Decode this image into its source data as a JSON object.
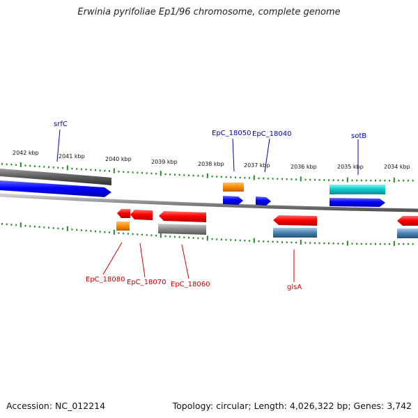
{
  "title": "Erwinia pyrifoliae Ep1/96 chromosome, complete genome",
  "footer": {
    "accession": "Accession: NC_012214",
    "summary": "Topology: circular; Length: 4,026,322 bp; Genes: 3,742"
  },
  "scale_labels": [
    "2042 kbp",
    "2041 kbp",
    "2040 kbp",
    "2039 kbp",
    "2038 kbp",
    "2037 kbp",
    "2036 kbp",
    "2035 kbp",
    "2034 kbp"
  ],
  "gene_labels": {
    "top": [
      "srfC",
      "EpC_18050",
      "EpC_18040",
      "sotB"
    ],
    "bottom": [
      "EpC_18080",
      "EpC_18070",
      "EpC_18060",
      "glsA"
    ]
  },
  "colors": {
    "forward_cds": "#0000ff",
    "reverse_cds": "#ff0000",
    "gene": "#808080",
    "rna": "#ff8c00",
    "misc_feature": "#00c8c8",
    "misc_feature_reverse": "#4682b4",
    "tick": "#228b22",
    "top_label": "#0000aa",
    "bottom_label": "#cc0000"
  }
}
